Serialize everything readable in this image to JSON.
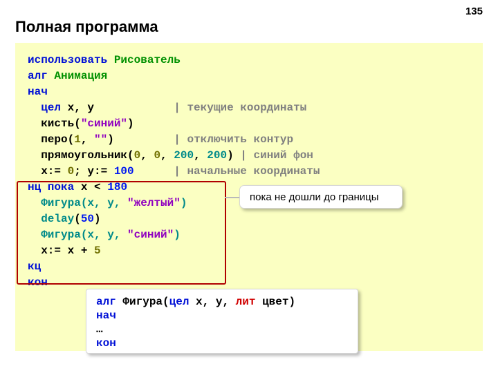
{
  "page_number": "135",
  "title": "Полная программа",
  "code": {
    "l1_use": "использовать",
    "l1_drawer": "Рисователь",
    "l2_alg": "алг",
    "l2_name": "Анимация",
    "l3_nach": "нач",
    "l4_int": "цел",
    "l4_vars": " x, y",
    "l4_comment": "| текущие координаты",
    "l5_brush": "кисть(",
    "l5_str": "\"синий\"",
    "l5_close": ")",
    "l6_pen": "перо(",
    "l6_num": "1",
    "l6_mid": ", ",
    "l6_str": "\"\"",
    "l6_close": ")",
    "l6_comment": "| отключить контур",
    "l7_rect": "прямоугольник(",
    "l7_n1": "0",
    "l7_c1": ", ",
    "l7_n2": "0",
    "l7_c2": ", ",
    "l7_n3": "200",
    "l7_c3": ", ",
    "l7_n4": "200",
    "l7_close": ") ",
    "l7_comment": "| синий фон",
    "l8_x": "x:= ",
    "l8_n1": "0",
    "l8_mid": "; y:= ",
    "l8_n2": "100",
    "l8_comment": "| начальные координаты",
    "l9_loop": "нц пока",
    "l9_cond": " x < ",
    "l9_num": "180",
    "l10_fig": "Фигура(x, y, ",
    "l10_str": "\"желтый\"",
    "l10_close": ")",
    "l11_delay": "delay",
    "l11_open": "(",
    "l11_num": "50",
    "l11_close": ")",
    "l12_fig": "Фигура(x, y, ",
    "l12_str": "\"синий\"",
    "l12_close": ")",
    "l13_assign": "x:= x + ",
    "l13_num": "5",
    "l14_kc": "кц",
    "l15_kon": "кон"
  },
  "callout_text": "пока не дошли до границы",
  "subbox": {
    "s1_alg": "алг",
    "s1_fig": " Фигура(",
    "s1_int": "цел",
    "s1_params": " x, y, ",
    "s1_lit": "лит",
    "s1_color": " цвет)",
    "s2_nach": "нач",
    "s3_dots": "…",
    "s4_kon": "кон"
  },
  "colors": {
    "bg_code": "#fbffc2",
    "outline_red": "#b00000",
    "kw_blue": "#0010d6",
    "identifier_green": "#009000",
    "teal": "#008a8a",
    "num_blue": "#0018f0",
    "num_olive": "#707000",
    "string_purple": "#9000c0",
    "comment_gray": "#808080",
    "callout_shadow": "rgba(0,0,0,0.28)"
  }
}
